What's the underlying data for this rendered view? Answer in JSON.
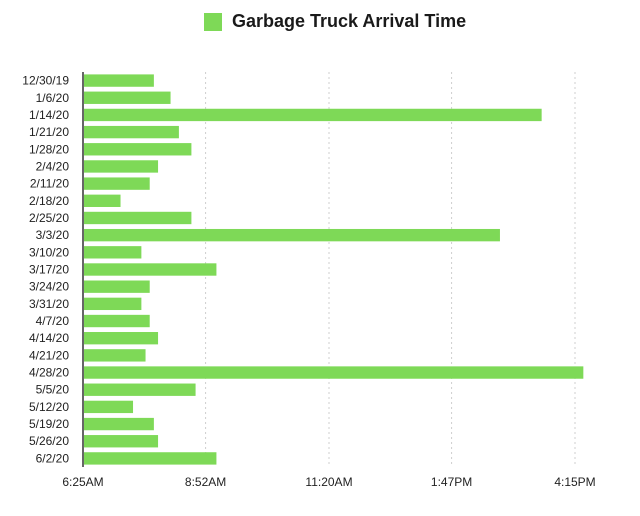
{
  "chart_data": {
    "type": "bar",
    "orientation": "horizontal",
    "legend": {
      "label": "Garbage Truck Arrival Time",
      "placement": "top"
    },
    "categories": [
      "12/30/19",
      "1/6/20",
      "1/14/20",
      "1/21/20",
      "1/28/20",
      "2/4/20",
      "2/11/20",
      "2/18/20",
      "2/25/20",
      "3/3/20",
      "3/10/20",
      "3/17/20",
      "3/24/20",
      "3/31/20",
      "4/7/20",
      "4/14/20",
      "4/21/20",
      "4/28/20",
      "5/5/20",
      "5/12/20",
      "5/19/20",
      "5/26/20",
      "6/2/20"
    ],
    "series": [
      {
        "name": "Garbage Truck Arrival Time",
        "values": [
          "7:50AM",
          "8:10AM",
          "3:35PM",
          "8:20AM",
          "8:35AM",
          "7:55AM",
          "7:45AM",
          "7:10AM",
          "8:35AM",
          "2:45PM",
          "7:35AM",
          "9:05AM",
          "7:45AM",
          "7:35AM",
          "7:45AM",
          "7:55AM",
          "7:40AM",
          "4:25PM",
          "8:40AM",
          "7:25AM",
          "7:50AM",
          "7:55AM",
          "9:05AM"
        ]
      }
    ],
    "xaxis": {
      "ticks": [
        "6:25AM",
        "8:52AM",
        "11:20AM",
        "1:47PM",
        "4:15PM"
      ],
      "range": [
        "6:25AM",
        "4:25PM"
      ]
    },
    "grid": {
      "vertical": true,
      "style": "dashed"
    },
    "color": "#7ed957"
  }
}
